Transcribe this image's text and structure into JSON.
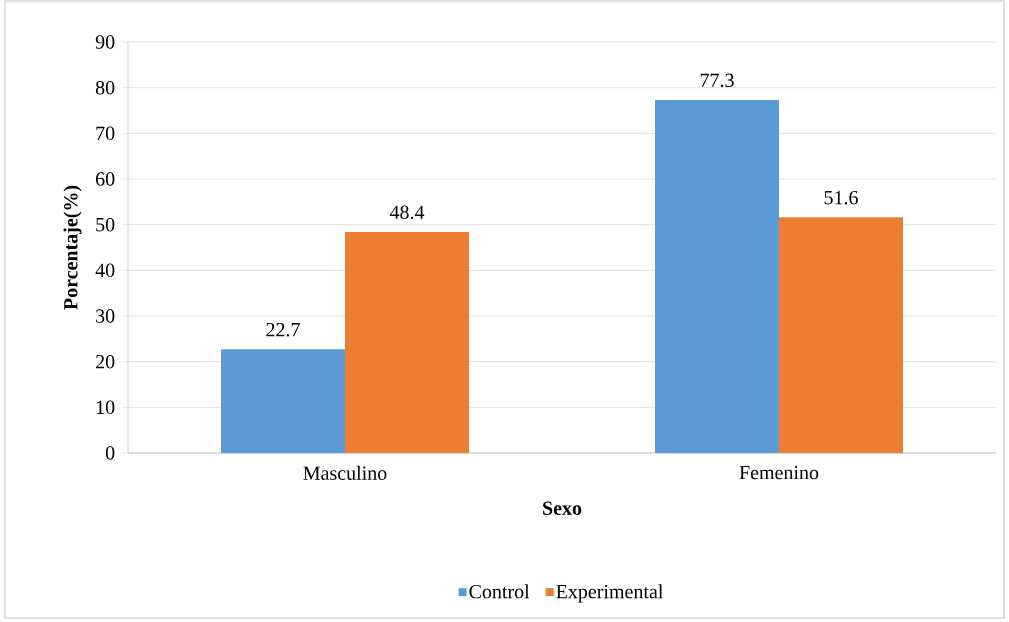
{
  "chart_data": {
    "type": "bar",
    "xlabel": "Sexo",
    "ylabel": "Porcentaje(%)",
    "categories": [
      "Masculino",
      "Femenino"
    ],
    "series": [
      {
        "name": "Control",
        "color": "#5b9bd5",
        "values": [
          22.7,
          77.3
        ]
      },
      {
        "name": "Experimental",
        "color": "#ed7d31",
        "values": [
          48.4,
          51.6
        ]
      }
    ],
    "ylim": [
      0,
      90
    ],
    "yticks": [
      0,
      10,
      20,
      30,
      40,
      50,
      60,
      70,
      80,
      90
    ],
    "grid": "y",
    "legend": "bottom",
    "data_labels": true
  }
}
